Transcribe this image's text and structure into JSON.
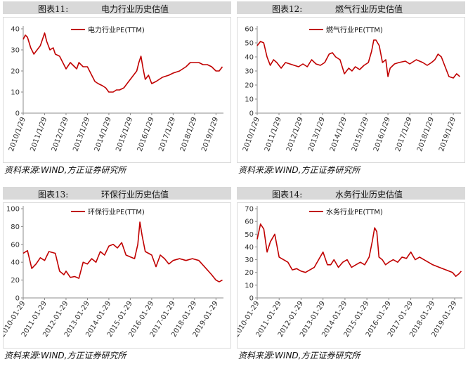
{
  "panels": [
    {
      "number": "图表11:",
      "title": "电力行业历史估值",
      "source": "资料来源:WIND,方正证券研究所"
    },
    {
      "number": "图表12:",
      "title": "燃气行业历史估值",
      "source": "资料来源:WIND,方正证券研究所"
    },
    {
      "number": "图表13:",
      "title": "环保行业历史估值",
      "source": "资料来源:WIND,方正证券研究所"
    },
    {
      "number": "图表14:",
      "title": "水务行业历史估值",
      "source": "资料来源:WIND,方正证券研究所"
    }
  ],
  "colors": {
    "line": "#c00000",
    "axis": "#8c8c8c",
    "title_bg": "#d9d9d9"
  },
  "chart_data": [
    {
      "type": "line",
      "series": [
        {
          "name": "电力行业PE(TTM)",
          "x": [
            2010.0,
            2010.1,
            2010.2,
            2010.35,
            2010.5,
            2010.65,
            2010.8,
            2011.0,
            2011.1,
            2011.25,
            2011.4,
            2011.5,
            2011.7,
            2011.85,
            2012.0,
            2012.2,
            2012.3,
            2012.5,
            2012.6,
            2012.8,
            2013.0,
            2013.2,
            2013.35,
            2013.5,
            2013.7,
            2013.85,
            2014.0,
            2014.2,
            2014.35,
            2014.5,
            2014.7,
            2014.85,
            2015.0,
            2015.15,
            2015.3,
            2015.4,
            2015.5,
            2015.6,
            2015.7,
            2015.85,
            2016.0,
            2016.2,
            2016.5,
            2016.8,
            2017.0,
            2017.3,
            2017.6,
            2017.8,
            2018.0,
            2018.2,
            2018.4,
            2018.6,
            2018.8,
            2019.0,
            2019.15,
            2019.3
          ],
          "values": [
            35,
            37,
            36,
            31,
            28,
            30,
            32,
            38,
            34,
            30,
            31,
            28,
            27,
            24,
            21,
            24,
            23,
            21,
            24,
            22,
            22,
            18,
            15,
            14,
            13,
            12,
            10,
            10,
            11,
            11,
            12,
            14,
            16,
            18,
            20,
            24,
            27,
            21,
            16,
            18,
            14,
            15,
            17,
            18,
            19,
            20,
            22,
            24,
            24,
            24,
            23,
            23,
            22,
            20,
            20,
            22
          ]
        }
      ],
      "xticklabels": [
        "2010/1/29",
        "2011/1/29",
        "2012/1/29",
        "2013/1/29",
        "2014/1/29",
        "2015/1/29",
        "2016/1/29",
        "2017/1/29",
        "2018/1/29",
        "2019/1/29"
      ],
      "ylim": [
        0,
        40
      ],
      "yticks": [
        0,
        10,
        20,
        30,
        40
      ],
      "xlim": [
        2010,
        2019.35
      ]
    },
    {
      "type": "line",
      "series": [
        {
          "name": "燃气行业PE(TTM)",
          "x": [
            2010.0,
            2010.15,
            2010.3,
            2010.45,
            2010.6,
            2010.75,
            2010.9,
            2011.1,
            2011.3,
            2011.5,
            2011.7,
            2011.9,
            2012.1,
            2012.3,
            2012.5,
            2012.7,
            2012.9,
            2013.1,
            2013.3,
            2013.45,
            2013.6,
            2013.8,
            2014.0,
            2014.2,
            2014.35,
            2014.5,
            2014.7,
            2014.9,
            2015.1,
            2015.25,
            2015.35,
            2015.45,
            2015.6,
            2015.75,
            2015.9,
            2016.0,
            2016.1,
            2016.3,
            2016.5,
            2016.8,
            2017.0,
            2017.3,
            2017.6,
            2017.8,
            2018.0,
            2018.15,
            2018.3,
            2018.45,
            2018.6,
            2018.8,
            2019.0,
            2019.15,
            2019.3
          ],
          "values": [
            48,
            51,
            50,
            40,
            34,
            38,
            36,
            32,
            36,
            35,
            34,
            33,
            35,
            33,
            38,
            35,
            34,
            36,
            42,
            43,
            40,
            38,
            28,
            32,
            30,
            33,
            31,
            34,
            36,
            44,
            52,
            52,
            48,
            36,
            38,
            26,
            32,
            35,
            36,
            37,
            35,
            38,
            36,
            34,
            36,
            38,
            42,
            40,
            34,
            26,
            25,
            28,
            26
          ]
        }
      ],
      "xticklabels": [
        "2010/1/29",
        "2011/1/29",
        "2012/1/29",
        "2013/1/29",
        "2014/1/29",
        "2015/1/29",
        "2016/1/29",
        "2017/1/29",
        "2018/1/29",
        "2019/1/29"
      ],
      "ylim": [
        0,
        60
      ],
      "yticks": [
        0,
        10,
        20,
        30,
        40,
        50,
        60
      ],
      "xlim": [
        2010,
        2019.35
      ]
    },
    {
      "type": "line",
      "series": [
        {
          "name": "环保行业PE(TTM)",
          "x": [
            2010.0,
            2010.2,
            2010.4,
            2010.6,
            2010.8,
            2011.0,
            2011.2,
            2011.5,
            2011.7,
            2011.9,
            2012.0,
            2012.2,
            2012.4,
            2012.6,
            2012.8,
            2013.0,
            2013.2,
            2013.4,
            2013.6,
            2013.8,
            2014.0,
            2014.2,
            2014.4,
            2014.6,
            2014.8,
            2015.0,
            2015.2,
            2015.35,
            2015.45,
            2015.55,
            2015.7,
            2015.85,
            2016.0,
            2016.2,
            2016.4,
            2016.6,
            2016.8,
            2017.0,
            2017.3,
            2017.6,
            2017.9,
            2018.2,
            2018.5,
            2018.8,
            2019.0,
            2019.15,
            2019.3
          ],
          "values": [
            50,
            53,
            33,
            38,
            45,
            42,
            52,
            50,
            30,
            26,
            30,
            23,
            24,
            22,
            40,
            38,
            44,
            40,
            52,
            48,
            58,
            60,
            56,
            62,
            48,
            46,
            44,
            60,
            85,
            70,
            52,
            50,
            48,
            35,
            48,
            44,
            38,
            42,
            44,
            42,
            44,
            42,
            34,
            26,
            20,
            18,
            20
          ]
        }
      ],
      "xticklabels": [
        "2010-01-29",
        "2011-01-29",
        "2012-01-29",
        "2013-01-29",
        "2014-01-29",
        "2015-01-29",
        "2016-01-29",
        "2017-01-29",
        "2018-01-29",
        "2019-01-29"
      ],
      "ylim": [
        0,
        100
      ],
      "yticks": [
        0,
        20,
        40,
        60,
        80,
        100
      ],
      "xlim": [
        2010,
        2019.35
      ]
    },
    {
      "type": "line",
      "series": [
        {
          "name": "水务行业PE(TTM)",
          "x": [
            2010.0,
            2010.15,
            2010.3,
            2010.45,
            2010.6,
            2010.8,
            2011.0,
            2011.2,
            2011.4,
            2011.6,
            2011.8,
            2012.0,
            2012.2,
            2012.4,
            2012.6,
            2012.8,
            2013.0,
            2013.2,
            2013.35,
            2013.5,
            2013.7,
            2013.9,
            2014.1,
            2014.3,
            2014.5,
            2014.7,
            2014.9,
            2015.1,
            2015.25,
            2015.35,
            2015.45,
            2015.55,
            2015.7,
            2015.85,
            2016.0,
            2016.2,
            2016.4,
            2016.6,
            2016.8,
            2017.0,
            2017.2,
            2017.4,
            2017.6,
            2017.8,
            2018.0,
            2018.3,
            2018.6,
            2018.9,
            2019.05,
            2019.2,
            2019.3
          ],
          "values": [
            46,
            58,
            54,
            36,
            44,
            50,
            32,
            30,
            28,
            22,
            23,
            21,
            20,
            22,
            24,
            30,
            36,
            26,
            26,
            30,
            24,
            28,
            30,
            24,
            26,
            28,
            26,
            32,
            45,
            55,
            52,
            32,
            30,
            26,
            28,
            30,
            28,
            32,
            31,
            36,
            30,
            32,
            30,
            28,
            26,
            24,
            22,
            20,
            17,
            19,
            21
          ]
        }
      ],
      "xticklabels": [
        "2010-01-29",
        "2011-01-29",
        "2012-01-29",
        "2013-01-29",
        "2014-01-29",
        "2015-01-29",
        "2016-01-29",
        "2017-01-29",
        "2018-01-29",
        "2019-01-29"
      ],
      "ylim": [
        0,
        70
      ],
      "yticks": [
        0,
        10,
        20,
        30,
        40,
        50,
        60,
        70
      ],
      "xlim": [
        2010,
        2019.35
      ]
    }
  ]
}
